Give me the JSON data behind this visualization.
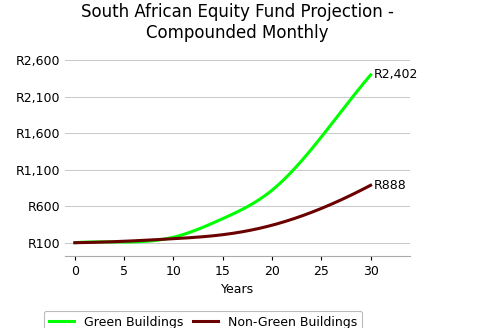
{
  "title": "South African Equity Fund Projection -\nCompounded Monthly",
  "xlabel": "Years",
  "green_values_x": [
    0,
    5,
    10,
    15,
    20,
    25,
    30
  ],
  "green_values_y": [
    100,
    110,
    175,
    430,
    820,
    1550,
    2402
  ],
  "red_values_x": [
    0,
    5,
    10,
    15,
    20,
    25,
    30
  ],
  "red_values_y": [
    100,
    120,
    155,
    210,
    340,
    570,
    888
  ],
  "green_color": "#00FF00",
  "red_color": "#6B0000",
  "green_label": "Green Buildings",
  "red_label": "Non-Green Buildings",
  "green_end_label": "R2,402",
  "red_end_label": "R888",
  "yticks": [
    100,
    600,
    1100,
    1600,
    2100,
    2600
  ],
  "ytick_labels": [
    "R100",
    "R600",
    "R1,100",
    "R1,600",
    "R2,100",
    "R2,600"
  ],
  "xticks": [
    0,
    5,
    10,
    15,
    20,
    25,
    30
  ],
  "ylim": [
    -80,
    2800
  ],
  "xlim": [
    -1,
    30
  ],
  "line_width": 2.2,
  "bg_color": "#FFFFFF",
  "title_fontsize": 12,
  "label_fontsize": 9,
  "tick_fontsize": 9,
  "annotation_fontsize": 9
}
